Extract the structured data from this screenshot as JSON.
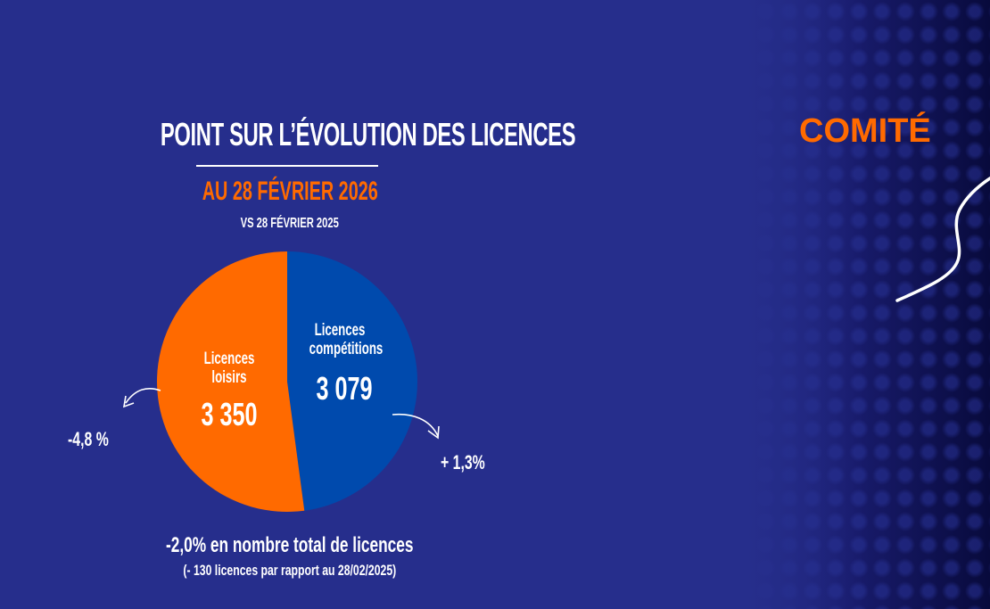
{
  "header": {
    "title": "POINT SUR L’ÉVOLUTION DES LICENCES",
    "date": "AU 28 FÉVRIER 2026",
    "comparison": "VS 28 FÉVRIER 2025"
  },
  "brand": {
    "label": "COMITÉ"
  },
  "colors": {
    "background": "#262e8c",
    "orange": "#ff6a00",
    "blue": "#004aad",
    "white": "#ffffff"
  },
  "chart_data": {
    "type": "pie",
    "title": "POINT SUR L’ÉVOLUTION DES LICENCES",
    "subtitle": "AU 28 FÉVRIER 2026 — VS 28 FÉVRIER 2025",
    "slices": [
      {
        "name": "Licences compétitions",
        "label_line1": "Licences",
        "label_line2": "compétitions",
        "value": 3079,
        "value_label": "3 079",
        "color": "#004aad",
        "change": "+ 1,3%"
      },
      {
        "name": "Licences loisirs",
        "label_line1": "Licences",
        "label_line2": "loisirs",
        "value": 3350,
        "value_label": "3 350",
        "color": "#ff6a00",
        "change": "-4,8 %"
      }
    ],
    "total_change": "-2,0% en nombre total de licences",
    "total_change_detail": "(- 130 licences par rapport au 28/02/2025)"
  }
}
